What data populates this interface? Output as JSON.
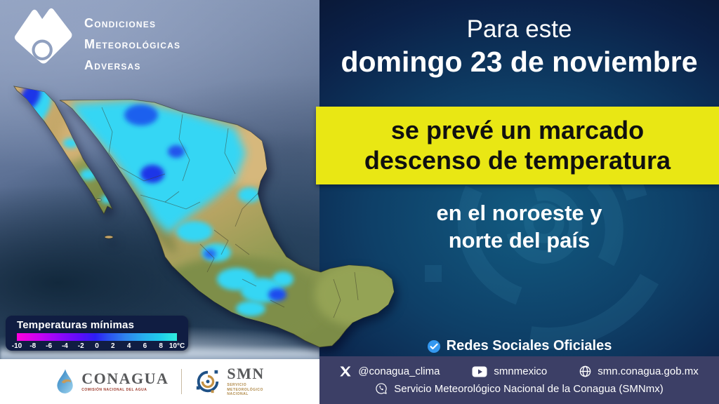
{
  "logo": {
    "lines": [
      "Condiciones",
      "Meteorológicas",
      "Adversas"
    ]
  },
  "headline": {
    "intro": "Para este",
    "date": "domingo 23 de noviembre"
  },
  "highlight": {
    "line1": "se prevé un marcado",
    "line2": "descenso de temperatura"
  },
  "region": {
    "line1": "en el noroeste y",
    "line2": "norte del país"
  },
  "social": {
    "title": "Redes Sociales Oficiales",
    "items": [
      {
        "icon": "x-icon",
        "label": "@conagua_clima"
      },
      {
        "icon": "youtube-icon",
        "label": "smnmexico"
      },
      {
        "icon": "globe-icon",
        "label": "smn.conagua.gob.mx"
      }
    ],
    "whatsapp": {
      "icon": "whatsapp-icon",
      "label": "Servicio Meteorológico Nacional de la Conagua (SMNmx)"
    }
  },
  "legend": {
    "title": "Temperaturas mínimas",
    "ticks": [
      "-10",
      "-8",
      "-6",
      "-4",
      "-2",
      "0",
      "2",
      "4",
      "6",
      "8",
      "10°C"
    ],
    "unit": "°C",
    "scale_min": -10,
    "scale_max": 10
  },
  "footer": {
    "conagua": {
      "name": "CONAGUA",
      "sub": "COMISIÓN NACIONAL DEL AGUA"
    },
    "smn": {
      "name": "SMN",
      "sub": "SERVICIO\nMETEOROLÓGICO\nNACIONAL"
    }
  },
  "colors": {
    "accent_yellow": "#e9e714",
    "panel_navy": "#0b2148",
    "legend_navy": "#101d42",
    "social_bar": "#3c3f66",
    "cold_cyan": "#35d6f4",
    "cold_blue": "#1d35e8",
    "land_tan": "#cbab6f",
    "land_olive": "#83924b",
    "badge_blue": "#3498f0"
  }
}
